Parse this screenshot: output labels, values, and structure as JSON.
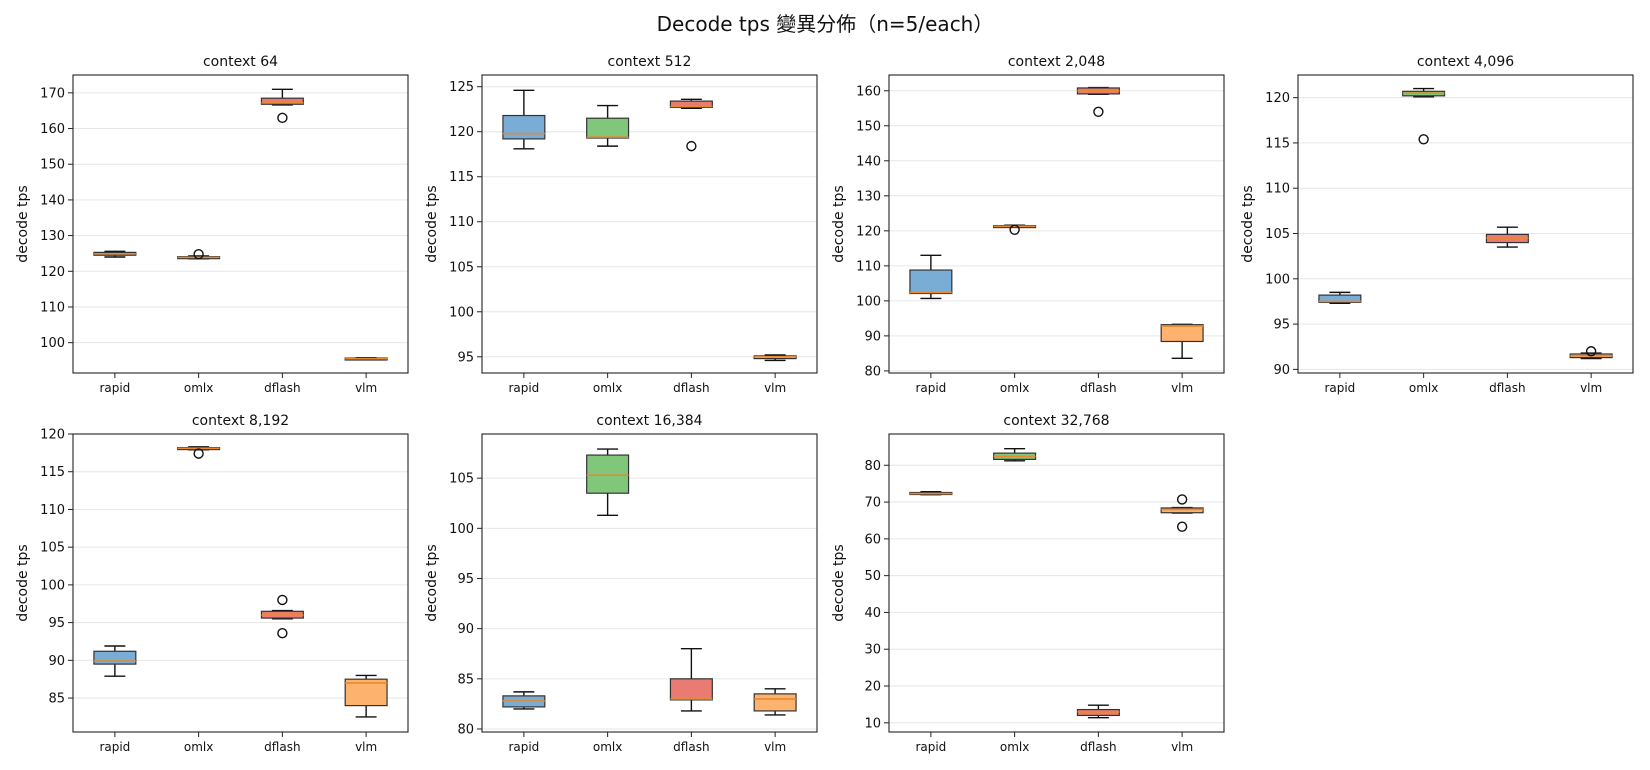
{
  "figure": {
    "title": "Decode tps 變異分佈（n=5/each）"
  },
  "colors": {
    "rapid": "#7aadd6",
    "omlx": "#80c77c",
    "dflash": "#ea7b72",
    "vlm": "#fdb36d",
    "median": "#e8892f",
    "edge": "#333333",
    "grid": "#e6e6e6"
  },
  "chart_data": [
    {
      "type": "box",
      "title": "context 64",
      "ylabel": "decode tps",
      "categories": [
        "rapid",
        "omlx",
        "dflash",
        "vlm"
      ],
      "ylim": [
        91.5,
        175
      ],
      "yticks": [
        100,
        110,
        120,
        130,
        140,
        150,
        160,
        170
      ],
      "grid": "y",
      "boxes": [
        {
          "name": "rapid",
          "whislo": 124.0,
          "q1": 124.5,
          "med": 124.9,
          "q3": 125.3,
          "whishi": 125.6,
          "fliers": []
        },
        {
          "name": "omlx",
          "whislo": 123.5,
          "q1": 123.7,
          "med": 123.9,
          "q3": 124.1,
          "whishi": 124.3,
          "fliers": [
            124.8
          ]
        },
        {
          "name": "dflash",
          "whislo": 166.6,
          "q1": 166.8,
          "med": 167.2,
          "q3": 168.5,
          "whishi": 171.0,
          "fliers": [
            163.0
          ]
        },
        {
          "name": "vlm",
          "whislo": 95.2,
          "q1": 95.3,
          "med": 95.5,
          "q3": 95.7,
          "whishi": 95.8,
          "fliers": []
        }
      ]
    },
    {
      "type": "box",
      "title": "context 512",
      "ylabel": "decode tps",
      "categories": [
        "rapid",
        "omlx",
        "dflash",
        "vlm"
      ],
      "ylim": [
        93.2,
        126.3
      ],
      "yticks": [
        95,
        100,
        105,
        110,
        115,
        120,
        125
      ],
      "grid": "y",
      "boxes": [
        {
          "name": "rapid",
          "whislo": 118.1,
          "q1": 119.2,
          "med": 119.8,
          "q3": 121.8,
          "whishi": 124.6,
          "fliers": []
        },
        {
          "name": "omlx",
          "whislo": 118.4,
          "q1": 119.3,
          "med": 119.4,
          "q3": 121.5,
          "whishi": 122.9,
          "fliers": []
        },
        {
          "name": "dflash",
          "whislo": 122.6,
          "q1": 122.7,
          "med": 122.8,
          "q3": 123.4,
          "whishi": 123.6,
          "fliers": [
            118.4
          ]
        },
        {
          "name": "vlm",
          "whislo": 94.6,
          "q1": 94.8,
          "med": 95.0,
          "q3": 95.1,
          "whishi": 95.2,
          "fliers": []
        }
      ]
    },
    {
      "type": "box",
      "title": "context 2,048",
      "ylabel": "decode tps",
      "categories": [
        "rapid",
        "omlx",
        "dflash",
        "vlm"
      ],
      "ylim": [
        79.4,
        164.5
      ],
      "yticks": [
        80,
        90,
        100,
        110,
        120,
        130,
        140,
        150,
        160
      ],
      "grid": "y",
      "boxes": [
        {
          "name": "rapid",
          "whislo": 100.7,
          "q1": 102.1,
          "med": 102.4,
          "q3": 108.8,
          "whishi": 113.0,
          "fliers": []
        },
        {
          "name": "omlx",
          "whislo": 121.0,
          "q1": 121.2,
          "med": 121.3,
          "q3": 121.5,
          "whishi": 121.6,
          "fliers": [
            120.3
          ]
        },
        {
          "name": "dflash",
          "whislo": 159.0,
          "q1": 159.1,
          "med": 160.0,
          "q3": 160.8,
          "whishi": 160.9,
          "fliers": [
            154.0
          ]
        },
        {
          "name": "vlm",
          "whislo": 83.6,
          "q1": 88.4,
          "med": 92.8,
          "q3": 93.2,
          "whishi": 93.3,
          "fliers": []
        }
      ]
    },
    {
      "type": "box",
      "title": "context 4,096",
      "ylabel": "decode tps",
      "categories": [
        "rapid",
        "omlx",
        "dflash",
        "vlm"
      ],
      "ylim": [
        89.6,
        122.5
      ],
      "yticks": [
        90,
        95,
        100,
        105,
        110,
        115,
        120
      ],
      "grid": "y",
      "boxes": [
        {
          "name": "rapid",
          "whislo": 97.3,
          "q1": 97.4,
          "med": 97.5,
          "q3": 98.2,
          "whishi": 98.5,
          "fliers": []
        },
        {
          "name": "omlx",
          "whislo": 120.1,
          "q1": 120.2,
          "med": 120.5,
          "q3": 120.7,
          "whishi": 121.0,
          "fliers": [
            115.4
          ]
        },
        {
          "name": "dflash",
          "whislo": 103.5,
          "q1": 104.0,
          "med": 104.5,
          "q3": 104.9,
          "whishi": 105.7,
          "fliers": []
        },
        {
          "name": "vlm",
          "whislo": 91.2,
          "q1": 91.3,
          "med": 91.5,
          "q3": 91.7,
          "whishi": 91.8,
          "fliers": [
            92.0
          ]
        }
      ]
    },
    {
      "type": "box",
      "title": "context 8,192",
      "ylabel": "decode tps",
      "categories": [
        "rapid",
        "omlx",
        "dflash",
        "vlm"
      ],
      "ylim": [
        80.5,
        120.0
      ],
      "yticks": [
        85,
        90,
        95,
        100,
        105,
        110,
        115,
        120
      ],
      "grid": "y",
      "boxes": [
        {
          "name": "rapid",
          "whislo": 87.9,
          "q1": 89.5,
          "med": 89.9,
          "q3": 91.2,
          "whishi": 91.9,
          "fliers": []
        },
        {
          "name": "omlx",
          "whislo": 117.9,
          "q1": 118.0,
          "med": 118.1,
          "q3": 118.2,
          "whishi": 118.3,
          "fliers": [
            117.4
          ]
        },
        {
          "name": "dflash",
          "whislo": 95.5,
          "q1": 95.6,
          "med": 96.0,
          "q3": 96.5,
          "whishi": 96.6,
          "fliers": [
            98.0,
            93.6
          ]
        },
        {
          "name": "vlm",
          "whislo": 82.5,
          "q1": 84.0,
          "med": 87.0,
          "q3": 87.5,
          "whishi": 88.0,
          "fliers": []
        }
      ]
    },
    {
      "type": "box",
      "title": "context 16,384",
      "ylabel": "decode tps",
      "categories": [
        "rapid",
        "omlx",
        "dflash",
        "vlm"
      ],
      "ylim": [
        79.7,
        109.4
      ],
      "yticks": [
        80,
        85,
        90,
        95,
        100,
        105
      ],
      "grid": "y",
      "boxes": [
        {
          "name": "rapid",
          "whislo": 82.0,
          "q1": 82.2,
          "med": 82.8,
          "q3": 83.3,
          "whishi": 83.7,
          "fliers": []
        },
        {
          "name": "omlx",
          "whislo": 101.3,
          "q1": 103.5,
          "med": 105.3,
          "q3": 107.3,
          "whishi": 107.9,
          "fliers": []
        },
        {
          "name": "dflash",
          "whislo": 81.8,
          "q1": 82.9,
          "med": 83.0,
          "q3": 85.0,
          "whishi": 88.0,
          "fliers": []
        },
        {
          "name": "vlm",
          "whislo": 81.4,
          "q1": 81.8,
          "med": 83.0,
          "q3": 83.5,
          "whishi": 84.0,
          "fliers": []
        }
      ]
    },
    {
      "type": "box",
      "title": "context 32,768",
      "ylabel": "decode tps",
      "categories": [
        "rapid",
        "omlx",
        "dflash",
        "vlm"
      ],
      "ylim": [
        7.5,
        88.5
      ],
      "yticks": [
        10,
        20,
        30,
        40,
        50,
        60,
        70,
        80
      ],
      "grid": "y",
      "boxes": [
        {
          "name": "rapid",
          "whislo": 72.0,
          "q1": 72.1,
          "med": 72.3,
          "q3": 72.6,
          "whishi": 72.8,
          "fliers": []
        },
        {
          "name": "omlx",
          "whislo": 81.2,
          "q1": 81.6,
          "med": 82.4,
          "q3": 83.3,
          "whishi": 84.5,
          "fliers": []
        },
        {
          "name": "dflash",
          "whislo": 11.4,
          "q1": 12.0,
          "med": 13.0,
          "q3": 13.6,
          "whishi": 14.8,
          "fliers": []
        },
        {
          "name": "vlm",
          "whislo": 67.0,
          "q1": 67.1,
          "med": 68.0,
          "q3": 68.4,
          "whishi": 68.5,
          "fliers": [
            70.7,
            63.3
          ]
        }
      ]
    }
  ]
}
